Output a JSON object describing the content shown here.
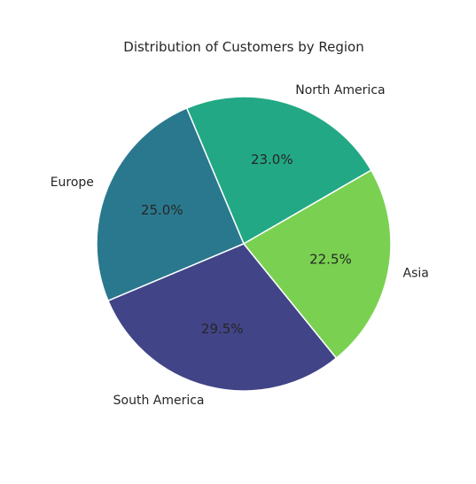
{
  "chart_data": {
    "type": "pie",
    "title": "Distribution of Customers by Region",
    "labels": [
      "North America",
      "Europe",
      "South America",
      "Asia"
    ],
    "values": [
      23.0,
      25.0,
      29.5,
      22.5
    ],
    "value_labels": [
      "23.0%",
      "25.0%",
      "29.5%",
      "22.5%"
    ],
    "colors": [
      "#22a884",
      "#2a788e",
      "#414487",
      "#7ad151"
    ],
    "start_angle_deg": 30,
    "direction": "counterclockwise",
    "legend": "none",
    "grid": false
  }
}
